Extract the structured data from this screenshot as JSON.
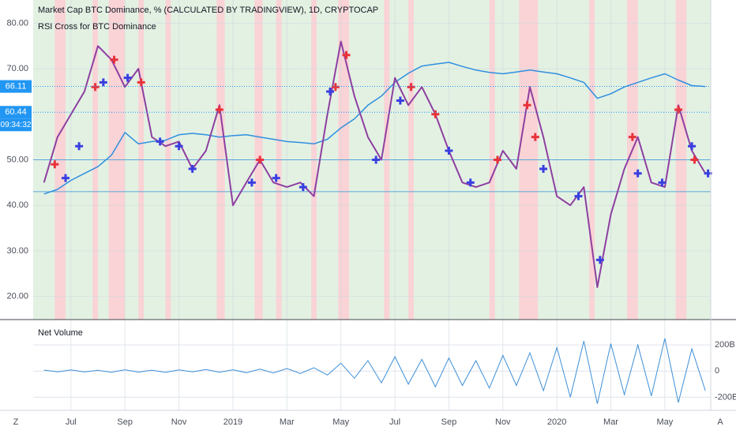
{
  "chart_data": {
    "type": "line",
    "title": "Market Cap BTC Dominance, %  (CALCULATED BY TRADINGVIEW), 1D, CRYPTOCAP",
    "subtitle": "RSI Cross for BTC Dominance",
    "xlim": [
      -1.4,
      23.7
    ],
    "xticks": [
      {
        "value": 0,
        "label": "Jul"
      },
      {
        "value": 2,
        "label": "Sep"
      },
      {
        "value": 4,
        "label": "Nov"
      },
      {
        "value": 6,
        "label": "2019"
      },
      {
        "value": 8,
        "label": "Mar"
      },
      {
        "value": 10,
        "label": "May"
      },
      {
        "value": 12,
        "label": "Jul"
      },
      {
        "value": 14,
        "label": "Sep"
      },
      {
        "value": 16,
        "label": "Nov"
      },
      {
        "value": 18,
        "label": "2020"
      },
      {
        "value": 20,
        "label": "Mar"
      },
      {
        "value": 22,
        "label": "May"
      }
    ],
    "ylim": [
      14.9,
      85.1
    ],
    "yticks": [
      {
        "value": 80,
        "label": "80.00"
      },
      {
        "value": 70,
        "label": "70.00"
      },
      {
        "value": 50,
        "label": "50.00"
      },
      {
        "value": 40,
        "label": "40.00"
      },
      {
        "value": 30,
        "label": "30.00"
      },
      {
        "value": 20,
        "label": "20.00"
      }
    ],
    "grid": true,
    "background_color": "#e3f1e3",
    "band_color": "#f9d3d6",
    "bands": [
      [
        -0.6,
        -0.2
      ],
      [
        0.8,
        1.0
      ],
      [
        1.4,
        2.0
      ],
      [
        2.5,
        2.7
      ],
      [
        3.5,
        3.7
      ],
      [
        5.4,
        5.7
      ],
      [
        6.8,
        7.1
      ],
      [
        7.6,
        7.8
      ],
      [
        8.9,
        9.1
      ],
      [
        9.9,
        10.3
      ],
      [
        11.6,
        11.8
      ],
      [
        12.5,
        12.7
      ],
      [
        15.5,
        15.7
      ],
      [
        16.6,
        17.3
      ],
      [
        19.2,
        19.4
      ],
      [
        20.6,
        21.0
      ],
      [
        22.4,
        22.8
      ]
    ],
    "hlines": [
      50,
      43
    ],
    "x": [
      -1.0,
      -0.5,
      0.0,
      0.5,
      1.0,
      1.5,
      2.0,
      2.5,
      3.0,
      3.5,
      4.0,
      4.5,
      5.0,
      5.5,
      6.0,
      6.5,
      7.0,
      7.5,
      8.0,
      8.5,
      9.0,
      9.5,
      10.0,
      10.5,
      11.0,
      11.5,
      12.0,
      12.5,
      13.0,
      13.5,
      14.0,
      14.5,
      15.0,
      15.5,
      16.0,
      16.5,
      17.0,
      17.5,
      18.0,
      18.5,
      19.0,
      19.5,
      20.0,
      20.5,
      21.0,
      21.5,
      22.0,
      22.5,
      23.0,
      23.5
    ],
    "series": [
      {
        "color": "#2f8fdf",
        "width": 1.5,
        "values": [
          42.5,
          43.5,
          45.5,
          47,
          48.5,
          51,
          56,
          53.5,
          54,
          54.3,
          55.5,
          55.8,
          55.5,
          55,
          55.3,
          55.5,
          55,
          54.5,
          54,
          53.8,
          53.5,
          54.5,
          57,
          59,
          62,
          64,
          67,
          69,
          70.6,
          71,
          71.4,
          70.5,
          69.7,
          69.2,
          68.9,
          69.3,
          69.7,
          69.3,
          68.9,
          68,
          67,
          63.5,
          64.5,
          66,
          67,
          68,
          68.9,
          67.5,
          66.3,
          66.1
        ]
      },
      {
        "color": "#8e3fa0",
        "width": 2,
        "values": [
          45,
          55,
          60,
          65,
          75,
          72,
          66,
          70,
          55,
          53,
          54,
          48,
          52,
          62,
          40,
          45,
          50,
          45,
          44,
          45,
          42,
          60,
          76,
          64,
          55,
          50,
          68,
          62,
          66,
          60,
          52,
          45,
          44,
          45,
          52,
          48,
          66,
          55,
          42,
          40,
          44,
          22,
          38,
          48,
          55,
          45,
          44,
          62,
          52,
          47
        ]
      }
    ],
    "markers": [
      {
        "color": "#e8333a",
        "x": [
          -0.6,
          0.9,
          1.6,
          2.6,
          5.5,
          7.0,
          9.8,
          10.2,
          12.6,
          13.5,
          15.8,
          16.9,
          17.2,
          20.8,
          22.5,
          23.1
        ],
        "values": [
          49,
          66,
          72,
          67,
          61,
          50,
          66,
          73,
          66,
          60,
          50,
          62,
          55,
          55,
          61,
          50
        ]
      },
      {
        "color": "#3a3fe0",
        "x": [
          -0.2,
          0.3,
          1.2,
          2.1,
          3.3,
          4.0,
          4.5,
          6.7,
          7.6,
          8.6,
          9.6,
          11.3,
          12.2,
          14.0,
          14.8,
          17.5,
          18.8,
          19.6,
          21.0,
          21.9,
          23.0,
          23.6
        ],
        "values": [
          46,
          53,
          67,
          68,
          54,
          53,
          48,
          45,
          46,
          44,
          65,
          50,
          63,
          52,
          45,
          48,
          42,
          28,
          47,
          45,
          53,
          47
        ]
      }
    ],
    "price_labels": [
      {
        "value": 66.11,
        "label": "66.11"
      },
      {
        "value": 60.44,
        "label": "60.44"
      }
    ],
    "countdown": "09:34:32",
    "volume": {
      "title": "Net Volume",
      "color": "#3d8fd8",
      "ylim": [
        -300000000000,
        394000000000
      ],
      "yticks": [
        {
          "value": 200000000000,
          "label": "200B"
        },
        {
          "value": 0,
          "label": "0"
        },
        {
          "value": -200000000000,
          "label": "-200B"
        }
      ],
      "values": [
        8000000000.0,
        -6000000000.0,
        9000000000.0,
        -7000000000.0,
        6000000000.0,
        -9000000000.0,
        10000000000.0,
        -8000000000.0,
        7000000000.0,
        -10000000000.0,
        9000000000.0,
        -6000000000.0,
        12000000000.0,
        -9000000000.0,
        10000000000.0,
        -12000000000.0,
        15000000000.0,
        -14000000000.0,
        20000000000.0,
        -18000000000.0,
        25000000000.0,
        -30000000000.0,
        60000000000.0,
        -55000000000.0,
        80000000000.0,
        -90000000000.0,
        110000000000.0,
        -100000000000.0,
        90000000000.0,
        -120000000000.0,
        100000000000.0,
        -110000000000.0,
        80000000000.0,
        -130000000000.0,
        120000000000.0,
        -110000000000.0,
        140000000000.0,
        -150000000000.0,
        180000000000.0,
        -200000000000.0,
        230000000000.0,
        -250000000000.0,
        210000000000.0,
        -180000000000.0,
        200000000000.0,
        -190000000000.0,
        250000000000.0,
        -240000000000.0,
        170000000000.0,
        -150000000000.0
      ]
    }
  }
}
